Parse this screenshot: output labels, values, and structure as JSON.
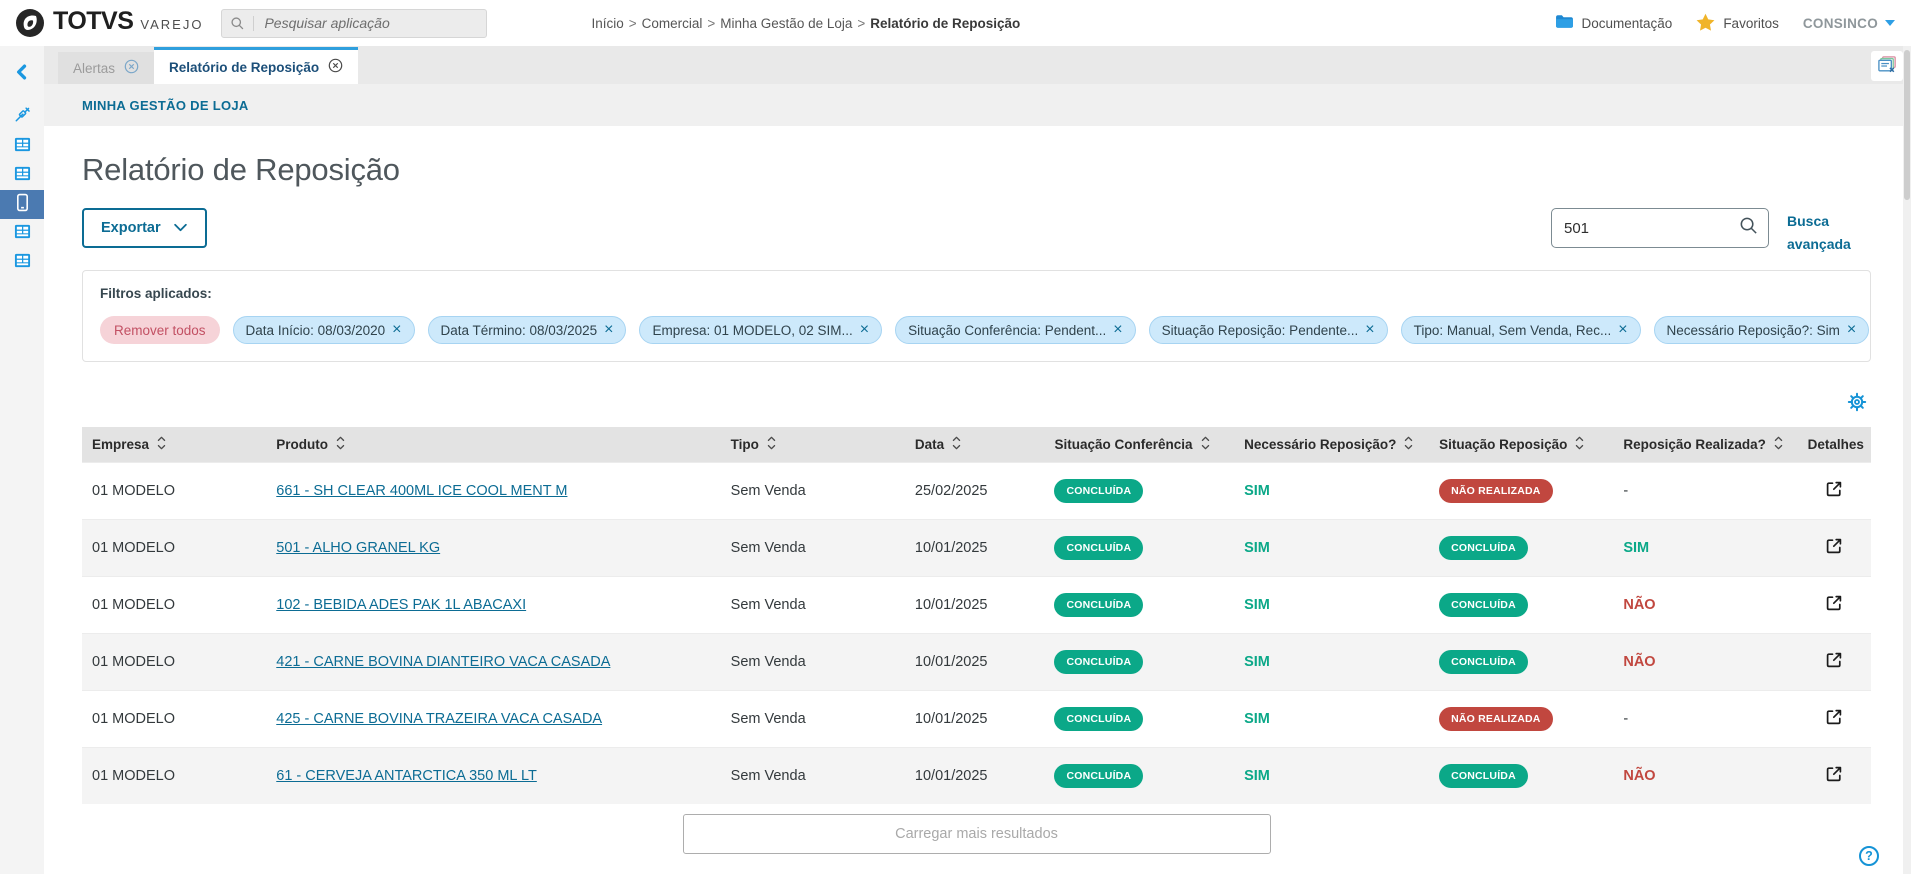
{
  "header": {
    "logo": {
      "brand": "TOTVS",
      "sub": "VAREJO"
    },
    "search_placeholder": "Pesquisar aplicação",
    "breadcrumb": {
      "items": [
        "Início",
        "Comercial",
        "Minha Gestão de Loja"
      ],
      "current": "Relatório de Reposição",
      "separator": ">"
    },
    "documentation_label": "Documentação",
    "favorites_label": "Favoritos",
    "user_label": "CONSINCO"
  },
  "sidebar": {
    "icons": [
      "chevron-left-icon",
      "syringe-icon",
      "grid-app-icon",
      "grid-app-icon",
      "phone-icon",
      "grid-app-icon",
      "grid-app-icon"
    ],
    "active_index": 4
  },
  "tabs": [
    {
      "label": "Alertas",
      "active": false
    },
    {
      "label": "Relatório de Reposição",
      "active": true
    }
  ],
  "page": {
    "module_link": "MINHA GESTÃO DE LOJA",
    "title": "Relatório de Reposição",
    "export_label": "Exportar",
    "search_value": "501",
    "advanced_search_label": "Busca avançada",
    "filters": {
      "label": "Filtros aplicados:",
      "remove_all_label": "Remover todos",
      "chips": [
        "Data Início: 08/03/2020",
        "Data Término: 08/03/2025",
        "Empresa: 01 MODELO, 02 SIM...",
        "Situação Conferência: Pendent...",
        "Situação Reposição: Pendente...",
        "Tipo: Manual, Sem Venda, Rec...",
        "Necessário Reposição?: Sim"
      ]
    },
    "table": {
      "columns": [
        "Empresa",
        "Produto",
        "Tipo",
        "Data",
        "Situação Conferência",
        "Necessário Reposição?",
        "Situação Reposição",
        "Reposição Realizada?",
        "Detalhes"
      ],
      "sortable_columns": 8,
      "rows": [
        {
          "empresa": "01 MODELO",
          "produto": "661 - SH CLEAR 400ML ICE COOL MENT M",
          "tipo": "Sem Venda",
          "data": "25/02/2025",
          "situacao_conferencia": "CONCLUÍDA",
          "necessario_reposicao": "SIM",
          "situacao_reposicao": "NÃO REALIZADA",
          "reposicao_realizada": "-"
        },
        {
          "empresa": "01 MODELO",
          "produto": "501 - ALHO GRANEL KG",
          "tipo": "Sem Venda",
          "data": "10/01/2025",
          "situacao_conferencia": "CONCLUÍDA",
          "necessario_reposicao": "SIM",
          "situacao_reposicao": "CONCLUÍDA",
          "reposicao_realizada": "SIM"
        },
        {
          "empresa": "01 MODELO",
          "produto": "102 - BEBIDA ADES PAK 1L ABACAXI",
          "tipo": "Sem Venda",
          "data": "10/01/2025",
          "situacao_conferencia": "CONCLUÍDA",
          "necessario_reposicao": "SIM",
          "situacao_reposicao": "CONCLUÍDA",
          "reposicao_realizada": "NÃO"
        },
        {
          "empresa": "01 MODELO",
          "produto": "421 - CARNE BOVINA DIANTEIRO VACA CASADA",
          "tipo": "Sem Venda",
          "data": "10/01/2025",
          "situacao_conferencia": "CONCLUÍDA",
          "necessario_reposicao": "SIM",
          "situacao_reposicao": "CONCLUÍDA",
          "reposicao_realizada": "NÃO"
        },
        {
          "empresa": "01 MODELO",
          "produto": "425 - CARNE BOVINA TRAZEIRA VACA CASADA",
          "tipo": "Sem Venda",
          "data": "10/01/2025",
          "situacao_conferencia": "CONCLUÍDA",
          "necessario_reposicao": "SIM",
          "situacao_reposicao": "NÃO REALIZADA",
          "reposicao_realizada": "-"
        },
        {
          "empresa": "01 MODELO",
          "produto": "61 - CERVEJA ANTARCTICA 350 ML LT",
          "tipo": "Sem Venda",
          "data": "10/01/2025",
          "situacao_conferencia": "CONCLUÍDA",
          "necessario_reposicao": "SIM",
          "situacao_reposicao": "CONCLUÍDA",
          "reposicao_realizada": "NÃO"
        }
      ]
    },
    "load_more_label": "Carregar mais resultados"
  },
  "glyphs": {
    "chip_close": "×",
    "help": "?"
  },
  "colors": {
    "primary": "#0c6c94",
    "success": "#0ba888",
    "danger": "#c1473f",
    "sidebar_icon": "#1a97e0",
    "sidebar_active_bg": "#4b7ab1",
    "tab_active_border": "#2f9fdd",
    "star": "#f0b429",
    "folder": "#1e88d2",
    "chip_bg": "#cde9fb",
    "chip_border": "#a7d4f2",
    "chip_text": "#30434c",
    "remove_chip_bg": "#f6d3d8",
    "remove_chip_text": "#c25063",
    "help": "#1593d6"
  }
}
